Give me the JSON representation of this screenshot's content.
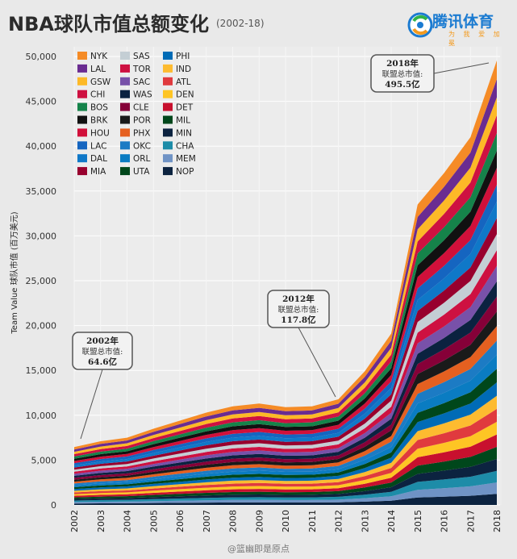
{
  "header": {
    "title": "NBA球队市值总额变化",
    "subtitle": "(2002-18)",
    "logo_text": "腾讯体育",
    "logo_tagline": "为 我 爱 加 冕"
  },
  "watermark": "@篮幽即是原点",
  "chart_data": {
    "type": "area",
    "stacked": true,
    "ylabel": "Team Value 球队市值 (百万美元)",
    "xlabel": "",
    "ylim": [
      0,
      50000
    ],
    "yticks": [
      0,
      5000,
      10000,
      15000,
      20000,
      25000,
      30000,
      35000,
      40000,
      45000,
      50000
    ],
    "ytick_labels": [
      "0",
      "5,000",
      "10,000",
      "15,000",
      "20,000",
      "25,000",
      "30,000",
      "35,000",
      "40,000",
      "45,000",
      "50,000"
    ],
    "x": [
      "2002",
      "2003",
      "2004",
      "2005",
      "2006",
      "2007",
      "2008",
      "2009",
      "2010",
      "2011",
      "2012",
      "2013",
      "2014",
      "2015",
      "2016",
      "2017",
      "2018"
    ],
    "totals": [
      6460,
      7100,
      7500,
      8500,
      9400,
      10300,
      11000,
      11300,
      10900,
      11000,
      11780,
      14900,
      19100,
      33500,
      37000,
      41000,
      49550
    ],
    "grid": true,
    "legend_position": "top-left",
    "series": [
      {
        "name": "NYK",
        "color": "#f58b26"
      },
      {
        "name": "LAL",
        "color": "#6a2c91"
      },
      {
        "name": "GSW",
        "color": "#fdb927"
      },
      {
        "name": "CHI",
        "color": "#ce1141"
      },
      {
        "name": "BOS",
        "color": "#15834a"
      },
      {
        "name": "BRK",
        "color": "#111111"
      },
      {
        "name": "HOU",
        "color": "#d1103a"
      },
      {
        "name": "LAC",
        "color": "#1565c0"
      },
      {
        "name": "DAL",
        "color": "#0f78c8"
      },
      {
        "name": "MIA",
        "color": "#98002e"
      },
      {
        "name": "SAS",
        "color": "#c4ced4"
      },
      {
        "name": "TOR",
        "color": "#ce1141"
      },
      {
        "name": "SAC",
        "color": "#7851a9"
      },
      {
        "name": "WAS",
        "color": "#0b2240"
      },
      {
        "name": "CLE",
        "color": "#860038"
      },
      {
        "name": "POR",
        "color": "#1a1a1a"
      },
      {
        "name": "PHX",
        "color": "#e56020"
      },
      {
        "name": "OKC",
        "color": "#1c7bc4"
      },
      {
        "name": "ORL",
        "color": "#0a7cc2"
      },
      {
        "name": "UTA",
        "color": "#00471b"
      },
      {
        "name": "PHI",
        "color": "#006bb6"
      },
      {
        "name": "IND",
        "color": "#fdbb30"
      },
      {
        "name": "ATL",
        "color": "#e03a3e"
      },
      {
        "name": "DEN",
        "color": "#fec524"
      },
      {
        "name": "DET",
        "color": "#c8102e"
      },
      {
        "name": "MIL",
        "color": "#00471b"
      },
      {
        "name": "MIN",
        "color": "#0c2340"
      },
      {
        "name": "CHA",
        "color": "#1d8ca8"
      },
      {
        "name": "MEM",
        "color": "#6f93c5"
      },
      {
        "name": "NOP",
        "color": "#0c2340"
      }
    ],
    "annotations": [
      {
        "year_label": "2002年",
        "caption": "联盟总市值:",
        "value": "64.6亿",
        "x": "2002",
        "y": 6460
      },
      {
        "year_label": "2012年",
        "caption": "联盟总市值:",
        "value": "117.8亿",
        "x": "2012",
        "y": 11780
      },
      {
        "year_label": "2018年",
        "caption": "联盟总市值:",
        "value": "495.5亿",
        "x": "2018",
        "y": 49550
      }
    ]
  }
}
